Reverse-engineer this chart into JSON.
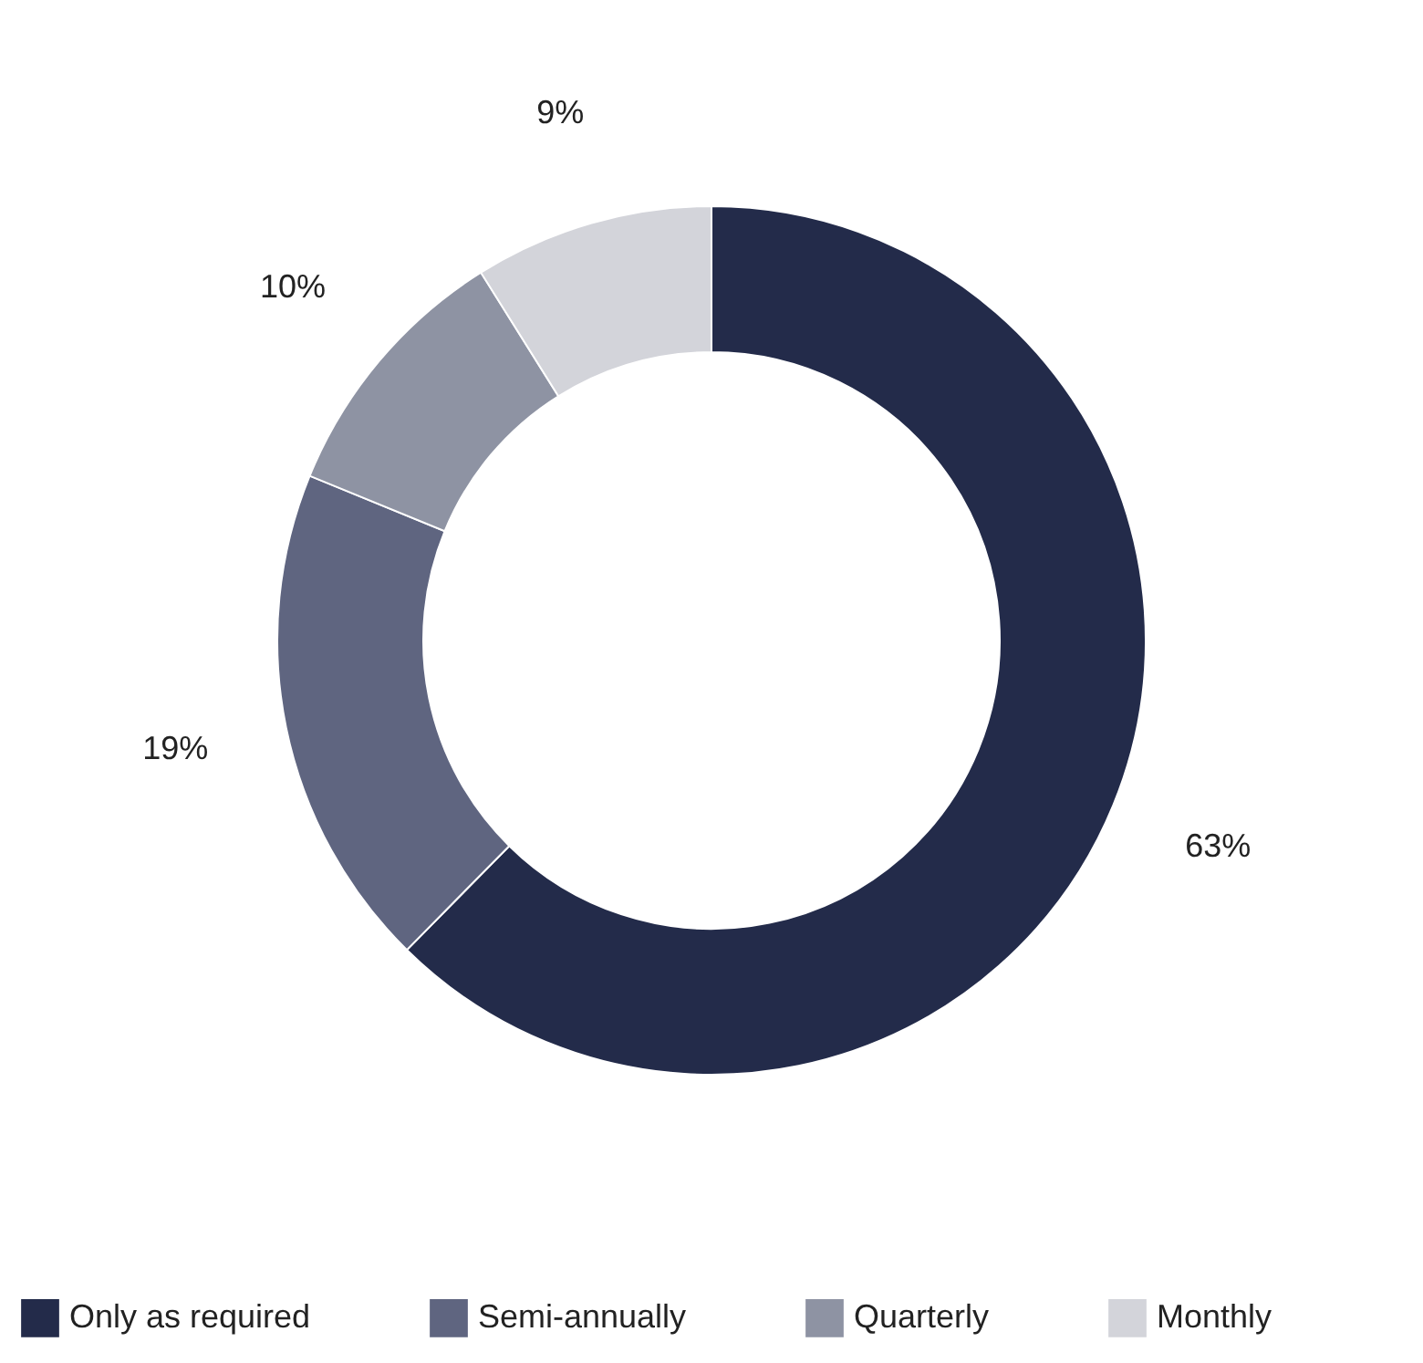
{
  "chart_data": {
    "type": "donut",
    "categories": [
      "Only as required",
      "Semi-annually",
      "Quarterly",
      "Monthly"
    ],
    "values": [
      63,
      19,
      10,
      9
    ],
    "colors": [
      "#232b4a",
      "#5f6580",
      "#8e93a3",
      "#d3d4da"
    ],
    "value_labels": [
      "63%",
      "19%",
      "10%",
      "9%"
    ],
    "legend": "bottom"
  }
}
